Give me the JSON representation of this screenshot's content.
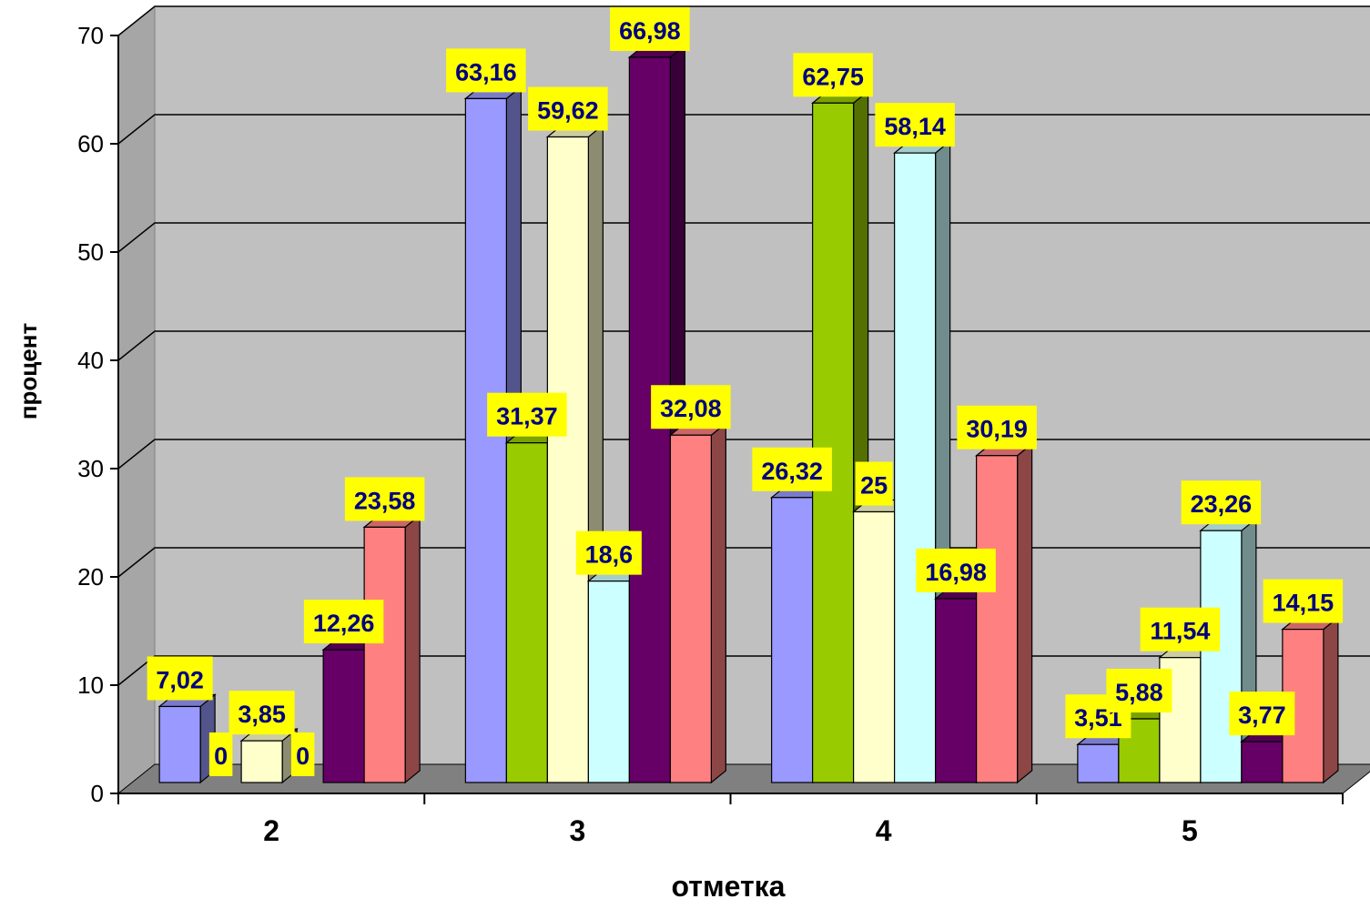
{
  "chart_data": {
    "type": "bar",
    "title": "",
    "xlabel": "отметка",
    "ylabel": "процент",
    "ylim": [
      0,
      70
    ],
    "yticks": [
      "0",
      "10",
      "20",
      "30",
      "40",
      "50",
      "60",
      "70"
    ],
    "categories": [
      "2",
      "3",
      "4",
      "5"
    ],
    "grid": true,
    "three_d": true,
    "series": [
      {
        "color": "#9999ff",
        "values": [
          7.02,
          63.16,
          26.32,
          3.51
        ],
        "labels": [
          "7,02",
          "63,16",
          "26,32",
          "3,51"
        ]
      },
      {
        "color": "#99cc00",
        "values": [
          0,
          31.37,
          62.75,
          5.88
        ],
        "labels": [
          "0",
          "31,37",
          "62,75",
          "5,88"
        ]
      },
      {
        "color": "#ffffcc",
        "values": [
          3.85,
          59.62,
          25,
          11.54
        ],
        "labels": [
          "3,85",
          "59,62",
          "25",
          "11,54"
        ]
      },
      {
        "color": "#ccffff",
        "values": [
          0,
          18.6,
          58.14,
          23.26
        ],
        "labels": [
          "0",
          "18,6",
          "58,14",
          "23,26"
        ]
      },
      {
        "color": "#660066",
        "values": [
          12.26,
          66.98,
          16.98,
          3.77
        ],
        "labels": [
          "12,26",
          "66,98",
          "16,98",
          "3,77"
        ]
      },
      {
        "color": "#ff8080",
        "values": [
          23.58,
          32.08,
          30.19,
          14.15
        ],
        "labels": [
          "23,58",
          "32,08",
          "30,19",
          "14,15"
        ]
      }
    ],
    "data_label_style": {
      "background": "#ffff00",
      "text_color": "#000080"
    },
    "wall_color": "#c0c0c0",
    "floor_color": "#808080"
  }
}
